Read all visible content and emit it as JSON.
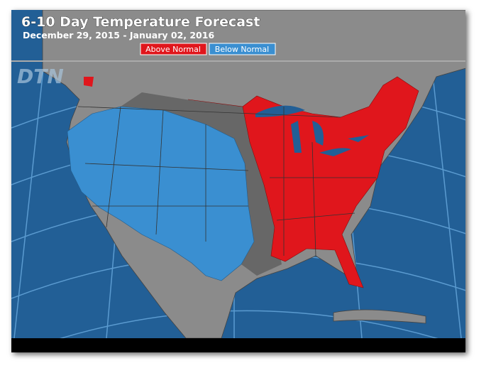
{
  "header": {
    "title": "6-10 Day Temperature Forecast",
    "subtitle": "December 29, 2015 - January 02, 2016"
  },
  "legend": [
    {
      "label": "Above Normal",
      "color": "#e0161c"
    },
    {
      "label": "Below Normal",
      "color": "#3a8fd1"
    }
  ],
  "logo": "DTN"
}
